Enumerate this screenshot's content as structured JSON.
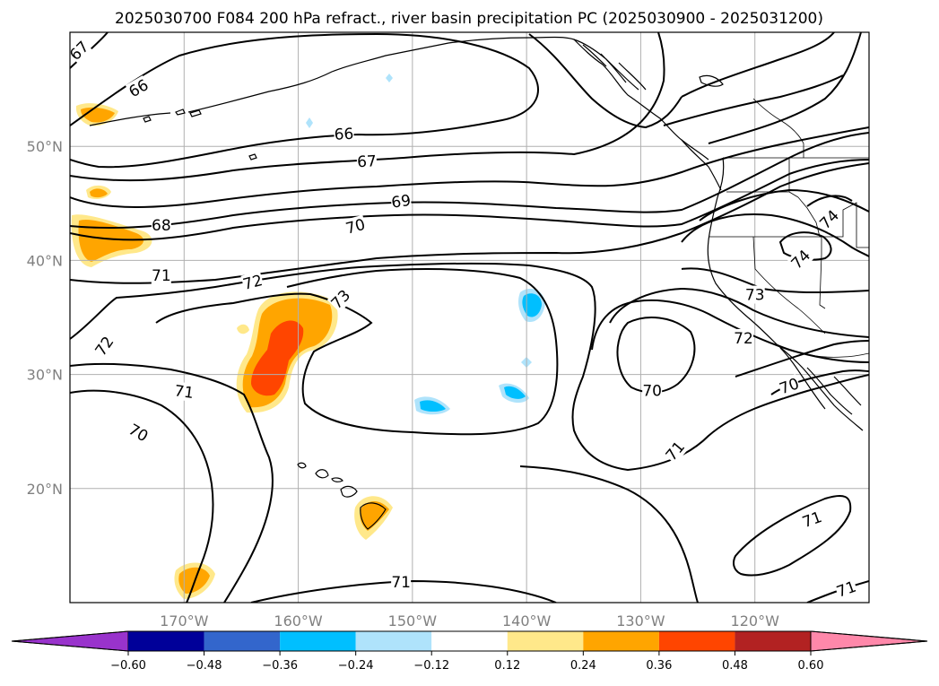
{
  "chart_data": {
    "type": "map-contour",
    "title": "2025030700 F084 200 hPa refract., river basin precipitation PC (2025030900 - 2025031200)",
    "lon_range": [
      -180,
      -110
    ],
    "lat_range": [
      10,
      60
    ],
    "lon_ticks": [
      {
        "value": -170,
        "label": "170°W"
      },
      {
        "value": -160,
        "label": "160°W"
      },
      {
        "value": -150,
        "label": "150°W"
      },
      {
        "value": -140,
        "label": "140°W"
      },
      {
        "value": -130,
        "label": "130°W"
      },
      {
        "value": -120,
        "label": "120°W"
      }
    ],
    "lat_ticks": [
      {
        "value": 20,
        "label": "20°N"
      },
      {
        "value": 30,
        "label": "30°N"
      },
      {
        "value": 40,
        "label": "40°N"
      },
      {
        "value": 50,
        "label": "50°N"
      }
    ],
    "grid": true,
    "colorbar": {
      "orientation": "horizontal",
      "extend": "both",
      "levels": [
        -0.6,
        -0.48,
        -0.36,
        -0.24,
        -0.12,
        0.12,
        0.24,
        0.36,
        0.48,
        0.6
      ],
      "labels": [
        "−0.60",
        "−0.48",
        "−0.36",
        "−0.24",
        "−0.12",
        "0.12",
        "0.24",
        "0.36",
        "0.48",
        "0.60"
      ],
      "colors": [
        "#9933cc",
        "#000099",
        "#3366cc",
        "#00bfff",
        "#afe3fb",
        "#ffffff",
        "#ffe88a",
        "#ffa500",
        "#ff4500",
        "#b22222",
        "#ff88aa"
      ]
    },
    "contour_labels": [
      {
        "text": "67",
        "lon": -179.2,
        "lat": 58.4,
        "angle": -45
      },
      {
        "text": "66",
        "lon": -174.0,
        "lat": 55.1,
        "angle": -30
      },
      {
        "text": "66",
        "lon": -156.0,
        "lat": 51.1,
        "angle": -3
      },
      {
        "text": "67",
        "lon": -154.0,
        "lat": 48.7,
        "angle": -3
      },
      {
        "text": "68",
        "lon": -172.0,
        "lat": 43.1,
        "angle": 0
      },
      {
        "text": "69",
        "lon": -151.0,
        "lat": 45.2,
        "angle": -8
      },
      {
        "text": "70",
        "lon": -155.0,
        "lat": 43.0,
        "angle": -15
      },
      {
        "text": "71",
        "lon": -172.0,
        "lat": 38.7,
        "angle": 0
      },
      {
        "text": "72",
        "lon": -164.0,
        "lat": 38.1,
        "angle": -15
      },
      {
        "text": "73",
        "lon": -156.3,
        "lat": 36.6,
        "angle": -45
      },
      {
        "text": "72",
        "lon": -177.0,
        "lat": 32.5,
        "angle": -55
      },
      {
        "text": "71",
        "lon": -170.0,
        "lat": 28.5,
        "angle": 8
      },
      {
        "text": "70",
        "lon": -174.0,
        "lat": 24.9,
        "angle": 30
      },
      {
        "text": "70",
        "lon": -129.0,
        "lat": 28.6,
        "angle": 0
      },
      {
        "text": "71",
        "lon": -127.0,
        "lat": 23.3,
        "angle": -50
      },
      {
        "text": "73",
        "lon": -120.0,
        "lat": 37.0,
        "angle": 0
      },
      {
        "text": "72",
        "lon": -121.0,
        "lat": 33.2,
        "angle": 0
      },
      {
        "text": "74",
        "lon": -116.0,
        "lat": 40.1,
        "angle": -45
      },
      {
        "text": "74",
        "lon": -113.5,
        "lat": 43.6,
        "angle": -45
      },
      {
        "text": "70",
        "lon": -117.0,
        "lat": 29.0,
        "angle": -20
      },
      {
        "text": "71",
        "lon": -115.0,
        "lat": 17.3,
        "angle": -20
      },
      {
        "text": "71",
        "lon": -151.0,
        "lat": 11.8,
        "angle": 0
      },
      {
        "text": "71",
        "lon": -112.0,
        "lat": 11.2,
        "angle": -20
      }
    ]
  }
}
